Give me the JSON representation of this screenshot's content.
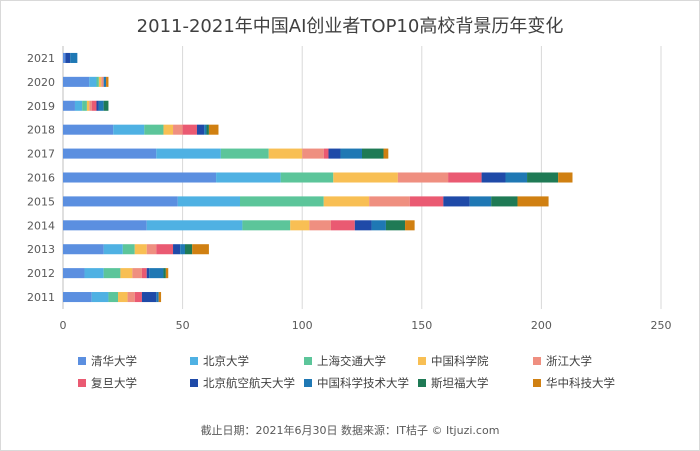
{
  "chart_data": {
    "type": "bar",
    "orientation": "horizontal",
    "stacked": true,
    "title": "2011-2021年中国AI创业者TOP10高校背景历年变化",
    "categories": [
      "2021",
      "2020",
      "2019",
      "2018",
      "2017",
      "2016",
      "2015",
      "2014",
      "2013",
      "2012",
      "2011"
    ],
    "xlim": [
      0,
      250
    ],
    "xticks": [
      0,
      50,
      100,
      150,
      200,
      250
    ],
    "grid": true,
    "legend_position": "bottom",
    "series": [
      {
        "name": "清华大学",
        "color": "#5b8fe0",
        "values": [
          1,
          11,
          5,
          21,
          39,
          64,
          48,
          35,
          17,
          9,
          12
        ]
      },
      {
        "name": "北京大学",
        "color": "#4fb1e3",
        "values": [
          0,
          3,
          3,
          13,
          27,
          27,
          26,
          40,
          8,
          8,
          7
        ]
      },
      {
        "name": "上海交通大学",
        "color": "#5cc59a",
        "values": [
          0,
          1,
          2,
          8,
          20,
          22,
          35,
          20,
          5,
          7,
          4
        ]
      },
      {
        "name": "中国科学院",
        "color": "#f8bf54",
        "values": [
          0,
          1,
          1,
          4,
          14,
          27,
          19,
          8,
          5,
          5,
          4
        ]
      },
      {
        "name": "浙江大学",
        "color": "#ef8f80",
        "values": [
          0,
          1,
          1,
          4,
          9,
          21,
          17,
          9,
          4,
          4,
          3
        ]
      },
      {
        "name": "复旦大学",
        "color": "#ea5a72",
        "values": [
          0,
          0,
          2,
          6,
          2,
          14,
          14,
          10,
          7,
          2,
          3
        ]
      },
      {
        "name": "北京航空航天大学",
        "color": "#1f4aa8",
        "values": [
          2,
          0,
          1,
          3,
          5,
          10,
          11,
          7,
          3,
          1,
          6
        ]
      },
      {
        "name": "中国科学技术大学",
        "color": "#1f78b4",
        "values": [
          3,
          1,
          2,
          1,
          9,
          9,
          9,
          6,
          2,
          6,
          1
        ]
      },
      {
        "name": "斯坦福大学",
        "color": "#1f7a55",
        "values": [
          0,
          0,
          2,
          1,
          9,
          13,
          11,
          8,
          3,
          1,
          0
        ]
      },
      {
        "name": "华中科技大学",
        "color": "#d08012",
        "values": [
          0,
          1,
          0,
          4,
          2,
          6,
          13,
          4,
          7,
          1,
          1
        ]
      }
    ]
  },
  "footer": "截止日期：2021年6月30日    数据来源：IT桔子 © Itjuzi.com"
}
